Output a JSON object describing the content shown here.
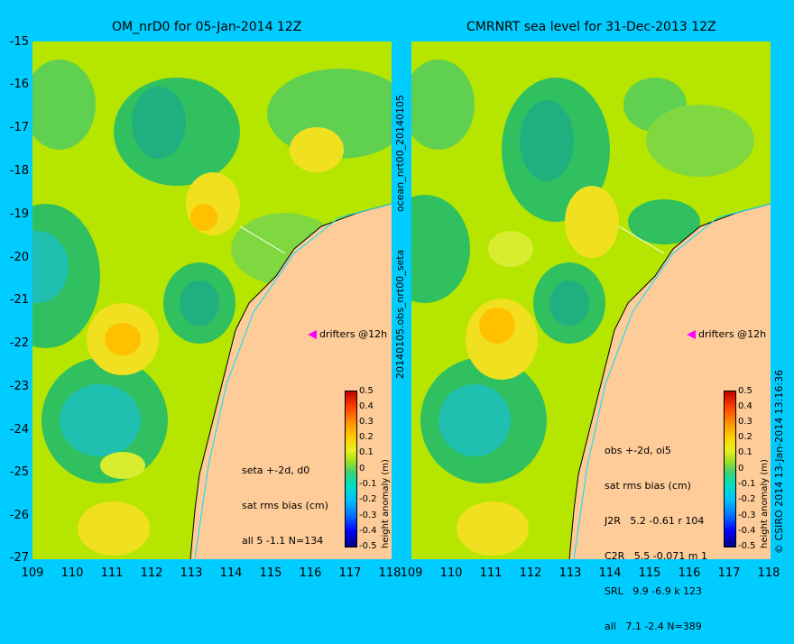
{
  "left_panel": {
    "title": "OM_nrD0 for 05-Jan-2014 12Z",
    "legend": "drifters @12h",
    "stats": [
      "seta +-2d, d0",
      "sat rms bias (cm)",
      "all 5 -1.1 N=134"
    ]
  },
  "right_panel": {
    "title": "CMRNRT sea level  for 31-Dec-2013 12Z",
    "legend": "drifters @12h",
    "stats": [
      "obs +-2d, oi5",
      "sat rms bias (cm)",
      "J2R   5.2 -0.61 r 104",
      "C2R   5.5 -0.071 m 1",
      "SRL   9.9 -6.9 k 123",
      "all   7.1 -2.4 N=389"
    ]
  },
  "side_labels": {
    "left": "ocean_nrt00_20140105",
    "left2": "20140105.obs_nrt00_seta",
    "right": "© CSIRO 2014   13-Jan-2014 13:16:36"
  },
  "colorbar": {
    "label": "height anomaly (m)",
    "ticks": [
      "0.5",
      "0.4",
      "0.3",
      "0.2",
      "0.1",
      "0",
      "-0.1",
      "-0.2",
      "-0.3",
      "-0.4",
      "-0.5"
    ]
  },
  "axes": {
    "lat_ticks": [
      "-15",
      "-16",
      "-17",
      "-18",
      "-19",
      "-20",
      "-21",
      "-22",
      "-23",
      "-24",
      "-25",
      "-26",
      "-27"
    ],
    "lon_ticks_left": [
      "109",
      "110",
      "111",
      "112",
      "113",
      "114",
      "115",
      "116",
      "117",
      "118"
    ],
    "lon_ticks_right": [
      "109",
      "110",
      "111",
      "112",
      "113",
      "114",
      "115",
      "116",
      "117",
      "118"
    ]
  }
}
